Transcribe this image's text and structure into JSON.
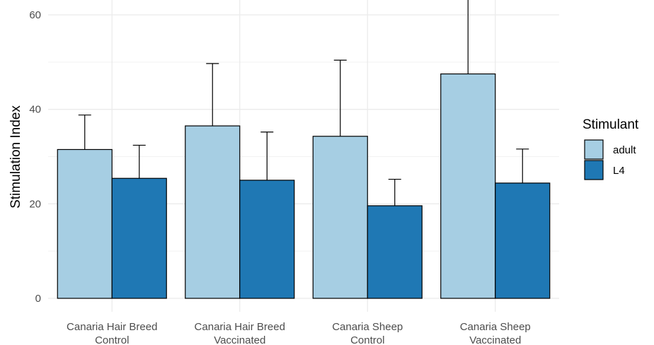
{
  "chart_data": {
    "type": "bar",
    "title": "",
    "xlabel": "",
    "ylabel": "Stimulation Index",
    "ylim": [
      0,
      65
    ],
    "yticks": [
      0,
      20,
      40,
      60
    ],
    "grid": true,
    "legend_position": "right",
    "legend_title": "Stimulant",
    "categories": [
      [
        "Canaria Hair Breed",
        "Control"
      ],
      [
        "Canaria Hair Breed",
        "Vaccinated"
      ],
      [
        "Canaria Sheep",
        "Control"
      ],
      [
        "Canaria Sheep",
        "Vaccinated"
      ]
    ],
    "series": [
      {
        "name": "adult",
        "color": "#a6cee3",
        "values": [
          31.5,
          36.5,
          34.3,
          47.5
        ],
        "error_upper": [
          38.8,
          49.7,
          50.4,
          65.5
        ]
      },
      {
        "name": "L4",
        "color": "#1f78b4",
        "values": [
          25.4,
          25.0,
          19.6,
          24.4
        ],
        "error_upper": [
          32.4,
          35.2,
          25.2,
          31.6
        ]
      }
    ]
  }
}
